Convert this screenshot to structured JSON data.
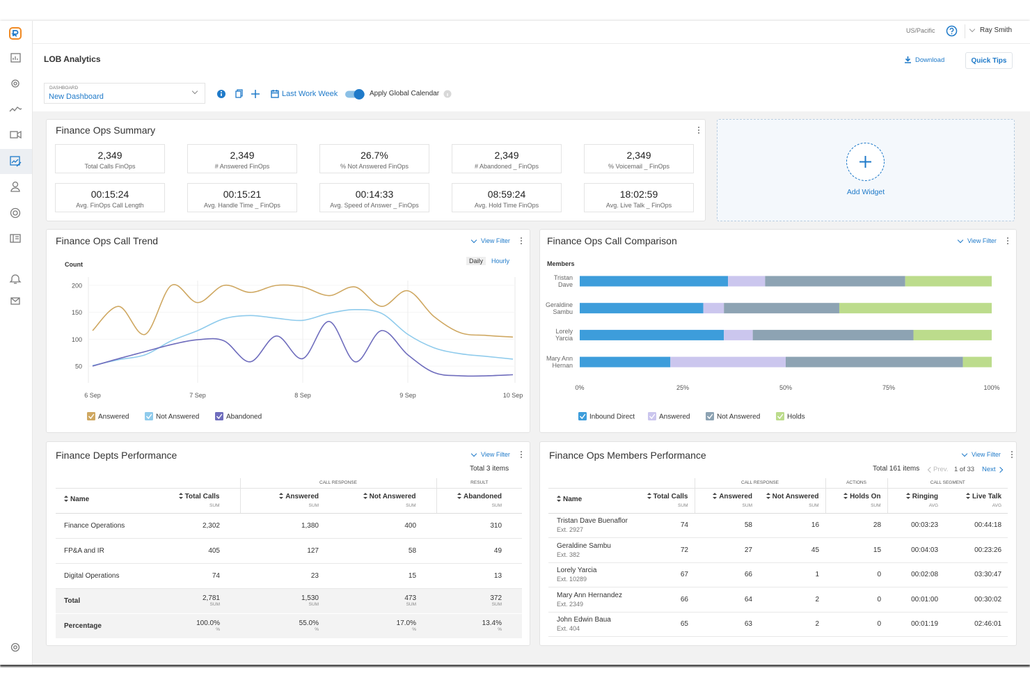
{
  "header": {
    "timezone": "US/Pacific",
    "user": "Ray Smith"
  },
  "page": {
    "title": "LOB Analytics",
    "download": "Download",
    "quick_tips": "Quick Tips"
  },
  "toolbar": {
    "dashboard_label": "DASHBOARD",
    "dashboard": "New Dashboard",
    "date_range": "Last Work Week",
    "global_calendar": "Apply Global Calendar"
  },
  "summary": {
    "title": "Finance Ops Summary",
    "kpis": [
      {
        "value": "2,349",
        "label": "Total Calls FinOps"
      },
      {
        "value": "2,349",
        "label": "# Answered FinOps"
      },
      {
        "value": "26.7%",
        "label": "% Not Answered FinOps"
      },
      {
        "value": "2,349",
        "label": "# Abandoned _ FinOps"
      },
      {
        "value": "2,349",
        "label": "% Voicemail _ FinOps"
      },
      {
        "value": "00:15:24",
        "label": "Avg. FinOps Call Length"
      },
      {
        "value": "00:15:21",
        "label": "Avg. Handle Time _ FinOps"
      },
      {
        "value": "00:14:33",
        "label": "Avg. Speed of Answer _ FinOps"
      },
      {
        "value": "08:59:24",
        "label": "Avg. Hold Time FinOps"
      },
      {
        "value": "18:02:59",
        "label": "Avg. Live Talk _ FinOps"
      }
    ]
  },
  "add_widget": "Add Widget",
  "widgets": {
    "view_filter": "View Filter",
    "granularity": [
      "Daily",
      "Hourly"
    ]
  },
  "chart_data": [
    {
      "type": "line",
      "title": "Finance Ops Call Trend",
      "y_label": "Count",
      "categories": [
        "6 Sep",
        null,
        null,
        null,
        "7 Sep",
        null,
        null,
        null,
        "8 Sep",
        null,
        null,
        null,
        "9 Sep",
        null,
        null,
        null,
        "10 Sep"
      ],
      "series": [
        {
          "name": "Answered",
          "color": "#cfa862",
          "values": [
            116,
            161,
            109,
            200,
            168,
            200,
            187,
            200,
            197,
            181,
            197,
            161,
            190,
            142,
            112,
            107,
            104
          ]
        },
        {
          "name": "Not Answered",
          "color": "#8fcbec",
          "values": [
            51,
            62,
            71,
            97,
            116,
            138,
            144,
            139,
            135,
            148,
            155,
            148,
            109,
            84,
            73,
            68,
            63
          ]
        },
        {
          "name": "Abandoned",
          "color": "#6f6dbd",
          "values": [
            50,
            64,
            77,
            90,
            99,
            97,
            58,
            106,
            64,
            133,
            58,
            116,
            71,
            38,
            32,
            32,
            34
          ]
        }
      ],
      "ylim": [
        20,
        215
      ],
      "yticks": [
        50,
        100,
        150,
        200
      ],
      "grid": true
    },
    {
      "type": "bar",
      "orientation": "horizontal",
      "stacked": true,
      "title": "Finance Ops Call Comparison",
      "y_label": "Members",
      "categories": [
        "Tristan Dave",
        "Geraldine Sambu",
        "Lorely Yarcia",
        "Mary Ann Hernan"
      ],
      "series": [
        {
          "name": "Inbound Direct",
          "color": "#3d9ddb",
          "values": [
            36,
            30,
            35,
            22
          ]
        },
        {
          "name": "Answered",
          "color": "#cbc6ee",
          "values": [
            9,
            5,
            7,
            28
          ]
        },
        {
          "name": "Not Answered",
          "color": "#8da3b3",
          "values": [
            34,
            28,
            39,
            43
          ]
        },
        {
          "name": "Holds",
          "color": "#bcdc8c",
          "values": [
            21,
            37,
            19,
            7
          ]
        }
      ],
      "xlim": [
        0,
        100
      ],
      "xticks": [
        {
          "value": 0,
          "label": "0%"
        },
        {
          "value": 25,
          "label": "25%"
        },
        {
          "value": 50,
          "label": "50%"
        },
        {
          "value": 75,
          "label": "75%"
        },
        {
          "value": 100,
          "label": "100%"
        }
      ]
    }
  ],
  "tables": [
    {
      "title": "Finance Depts Performance",
      "total": "Total 3 items",
      "groups": [
        "CALL RESPONSE",
        "RESULT"
      ],
      "columns": [
        {
          "name": "Name"
        },
        {
          "name": "Total Calls",
          "agg": "SUM"
        },
        {
          "name": "Answered",
          "agg": "SUM"
        },
        {
          "name": "Not Answered",
          "agg": "SUM"
        },
        {
          "name": "Abandoned",
          "agg": "SUM"
        }
      ],
      "rows": [
        {
          "name": "Finance Operations",
          "cells": [
            "2,302",
            "1,380",
            "400",
            "310"
          ]
        },
        {
          "name": "FP&A and IR",
          "cells": [
            "405",
            "127",
            "58",
            "49"
          ]
        },
        {
          "name": "Digital Operations",
          "cells": [
            "74",
            "23",
            "15",
            "13"
          ]
        }
      ],
      "summary_rows": [
        {
          "name": "Total",
          "cells": [
            {
              "value": "2,781",
              "unit": "SUM"
            },
            {
              "value": "1,530",
              "unit": "SUM"
            },
            {
              "value": "473",
              "unit": "SUM"
            },
            {
              "value": "372",
              "unit": "SUM"
            }
          ]
        },
        {
          "name": "Percentage",
          "cells": [
            {
              "value": "100.0%",
              "unit": "%"
            },
            {
              "value": "55.0%",
              "unit": "%"
            },
            {
              "value": "17.0%",
              "unit": "%"
            },
            {
              "value": "13.4%",
              "unit": "%"
            }
          ]
        }
      ]
    },
    {
      "title": "Finance Ops Members Performance",
      "total": "Total 161 items",
      "pagination": {
        "prev": "Prev.",
        "page": "1 of 33",
        "next": "Next"
      },
      "groups": [
        "CALL RESPONSE",
        "ACTIONS",
        "CALL SEGMENT"
      ],
      "columns": [
        {
          "name": "Name"
        },
        {
          "name": "Total Calls",
          "agg": "SUM"
        },
        {
          "name": "Answered",
          "agg": "SUM"
        },
        {
          "name": "Not Answered",
          "agg": "SUM"
        },
        {
          "name": "Holds On",
          "agg": "SUM"
        },
        {
          "name": "Ringing",
          "agg": "AVG"
        },
        {
          "name": "Live Talk",
          "agg": "AVG"
        }
      ],
      "rows": [
        {
          "name": "Tristan Dave Buenaflor",
          "ext": "Ext. 2927",
          "cells": [
            "74",
            "58",
            "16",
            "28",
            "00:03:23",
            "00:44:18"
          ]
        },
        {
          "name": "Geraldine Sambu",
          "ext": "Ext. 382",
          "cells": [
            "72",
            "27",
            "45",
            "15",
            "00:04:03",
            "00:23:26"
          ]
        },
        {
          "name": "Lorely Yarcia",
          "ext": "Ext. 10289",
          "cells": [
            "67",
            "66",
            "1",
            "0",
            "00:02:08",
            "03:30:47"
          ]
        },
        {
          "name": "Mary Ann Hernandez",
          "ext": "Ext. 2349",
          "cells": [
            "66",
            "64",
            "2",
            "0",
            "00:01:00",
            "00:30:02"
          ]
        },
        {
          "name": "John Edwin Baua",
          "ext": "Ext. 404",
          "cells": [
            "65",
            "63",
            "2",
            "0",
            "00:01:19",
            "02:46:01"
          ]
        }
      ]
    }
  ]
}
